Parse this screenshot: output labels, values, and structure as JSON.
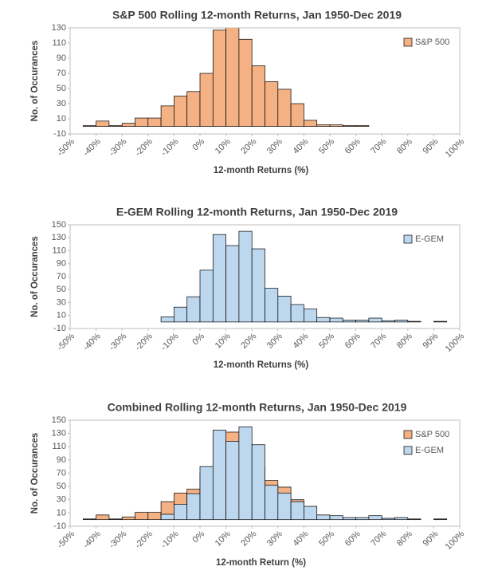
{
  "chart_data": [
    {
      "type": "histogram",
      "title": "S&P 500 Rolling 12-month Returns, Jan 1950-Dec 2019",
      "xlabel": "12-month Returns (%)",
      "ylabel": "No. of Occurances",
      "series": [
        {
          "name": "S&P 500",
          "color": "#f4b183",
          "bins": [
            -45,
            -40,
            -35,
            -30,
            -25,
            -20,
            -15,
            -10,
            -5,
            0,
            5,
            10,
            15,
            20,
            25,
            30,
            35,
            40,
            45,
            50,
            55,
            60,
            65
          ],
          "values": [
            1,
            7,
            1,
            4,
            11,
            11,
            27,
            40,
            46,
            70,
            127,
            132,
            115,
            80,
            59,
            49,
            30,
            8,
            2,
            2,
            1,
            1
          ]
        }
      ],
      "xlim": [
        -50,
        100
      ],
      "xticks": [
        {
          "value": -50,
          "label": "-50%"
        },
        {
          "value": -40,
          "label": "-40%"
        },
        {
          "value": -30,
          "label": "-30%"
        },
        {
          "value": -20,
          "label": "-20%"
        },
        {
          "value": -10,
          "label": "-10%"
        },
        {
          "value": 0,
          "label": "0%"
        },
        {
          "value": 10,
          "label": "10%"
        },
        {
          "value": 20,
          "label": "20%"
        },
        {
          "value": 30,
          "label": "30%"
        },
        {
          "value": 40,
          "label": "40%"
        },
        {
          "value": 50,
          "label": "50%"
        },
        {
          "value": 60,
          "label": "60%"
        },
        {
          "value": 70,
          "label": "70%"
        },
        {
          "value": 80,
          "label": "80%"
        },
        {
          "value": 90,
          "label": "90%"
        },
        {
          "value": 100,
          "label": "100%"
        }
      ],
      "ylim": [
        -10,
        130
      ],
      "yticks": [
        -10,
        10,
        30,
        50,
        70,
        90,
        110,
        130
      ],
      "grid": false,
      "legend": "upper right"
    },
    {
      "type": "histogram",
      "title": "E-GEM Rolling 12-month Returns, Jan 1950-Dec 2019",
      "xlabel": "12-month Returns (%)",
      "ylabel": "No. of Occurances",
      "series": [
        {
          "name": "E-GEM",
          "color": "#bdd7ee",
          "bins": [
            -15,
            -10,
            -5,
            0,
            5,
            10,
            15,
            20,
            25,
            30,
            35,
            40,
            45,
            50,
            55,
            60,
            65,
            70,
            75,
            80,
            85,
            90,
            95
          ],
          "values": [
            8,
            23,
            39,
            80,
            135,
            118,
            140,
            113,
            52,
            40,
            27,
            20,
            7,
            6,
            3,
            3,
            6,
            2,
            3,
            1,
            0,
            1
          ]
        }
      ],
      "xlim": [
        -50,
        100
      ],
      "xticks": [
        {
          "value": -50,
          "label": "-50%"
        },
        {
          "value": -40,
          "label": "-40%"
        },
        {
          "value": -30,
          "label": "-30%"
        },
        {
          "value": -20,
          "label": "-20%"
        },
        {
          "value": -10,
          "label": "-10%"
        },
        {
          "value": 0,
          "label": "0%"
        },
        {
          "value": 10,
          "label": "10%"
        },
        {
          "value": 20,
          "label": "20%"
        },
        {
          "value": 30,
          "label": "30%"
        },
        {
          "value": 40,
          "label": "40%"
        },
        {
          "value": 50,
          "label": "50%"
        },
        {
          "value": 60,
          "label": "60%"
        },
        {
          "value": 70,
          "label": "70%"
        },
        {
          "value": 80,
          "label": "80%"
        },
        {
          "value": 90,
          "label": "90%"
        },
        {
          "value": 100,
          "label": "100%"
        }
      ],
      "ylim": [
        -10,
        150
      ],
      "yticks": [
        -10,
        10,
        30,
        50,
        70,
        90,
        110,
        130,
        150
      ],
      "grid": false,
      "legend": "upper right"
    },
    {
      "type": "histogram",
      "title": "Combined Rolling 12-month Returns, Jan 1950-Dec 2019",
      "xlabel": "12-month Return (%)",
      "ylabel": "No. of Occurances",
      "series": [
        {
          "name": "S&P 500",
          "color": "#f4b183",
          "bins": [
            -45,
            -40,
            -35,
            -30,
            -25,
            -20,
            -15,
            -10,
            -5,
            0,
            5,
            10,
            15,
            20,
            25,
            30,
            35,
            40,
            45,
            50,
            55,
            60,
            65
          ],
          "values": [
            1,
            7,
            1,
            4,
            11,
            11,
            27,
            40,
            46,
            70,
            127,
            132,
            115,
            80,
            59,
            49,
            30,
            8,
            2,
            2,
            1,
            1
          ]
        },
        {
          "name": "E-GEM",
          "color": "#bdd7ee",
          "bins": [
            -15,
            -10,
            -5,
            0,
            5,
            10,
            15,
            20,
            25,
            30,
            35,
            40,
            45,
            50,
            55,
            60,
            65,
            70,
            75,
            80,
            85,
            90,
            95
          ],
          "values": [
            8,
            23,
            39,
            80,
            135,
            118,
            140,
            113,
            52,
            40,
            27,
            20,
            7,
            6,
            3,
            3,
            6,
            2,
            3,
            1,
            0,
            1
          ]
        }
      ],
      "xlim": [
        -50,
        100
      ],
      "xticks": [
        {
          "value": -50,
          "label": "-50%"
        },
        {
          "value": -40,
          "label": "-40%"
        },
        {
          "value": -30,
          "label": "-30%"
        },
        {
          "value": -20,
          "label": "-20%"
        },
        {
          "value": -10,
          "label": "-10%"
        },
        {
          "value": 0,
          "label": "0%"
        },
        {
          "value": 10,
          "label": "10%"
        },
        {
          "value": 20,
          "label": "20%"
        },
        {
          "value": 30,
          "label": "30%"
        },
        {
          "value": 40,
          "label": "40%"
        },
        {
          "value": 50,
          "label": "50%"
        },
        {
          "value": 60,
          "label": "60%"
        },
        {
          "value": 70,
          "label": "70%"
        },
        {
          "value": 80,
          "label": "80%"
        },
        {
          "value": 90,
          "label": "90%"
        },
        {
          "value": 100,
          "label": "100%"
        }
      ],
      "ylim": [
        -10,
        150
      ],
      "yticks": [
        -10,
        10,
        30,
        50,
        70,
        90,
        110,
        130,
        150
      ],
      "grid": false,
      "legend": "upper right"
    }
  ]
}
